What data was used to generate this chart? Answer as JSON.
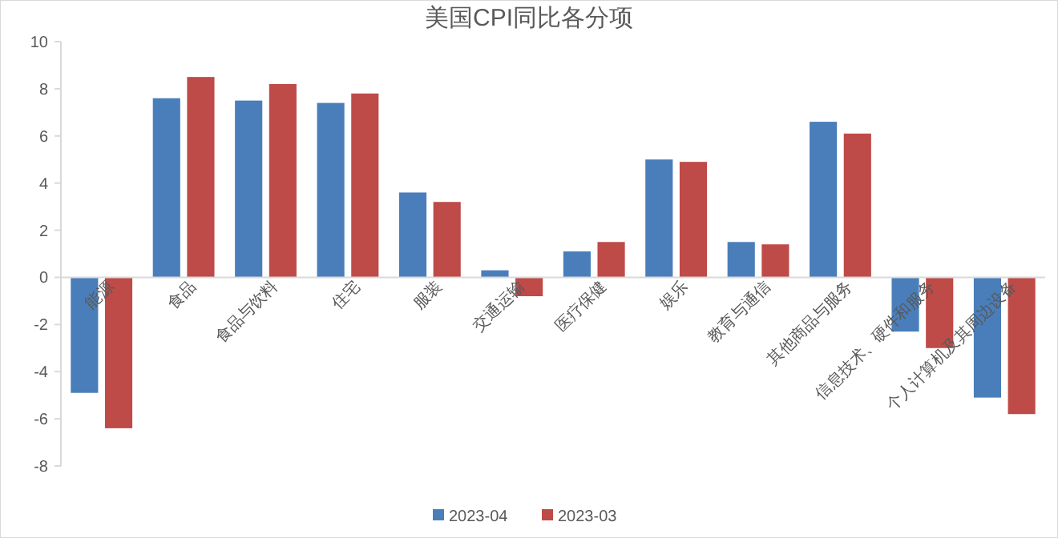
{
  "chart_data": {
    "type": "bar",
    "title": "美国CPI同比各分项",
    "categories": [
      "能源",
      "食品",
      "食品与饮料",
      "住宅",
      "服装",
      "交通运输",
      "医疗保健",
      "娱乐",
      "教育与通信",
      "其他商品与服务",
      "信息技术、硬件和服务",
      "个人计算机及其周边设备"
    ],
    "series": [
      {
        "name": "2023-04",
        "color": "#4a7ebb",
        "values": [
          -4.9,
          7.6,
          7.5,
          7.4,
          3.6,
          0.3,
          1.1,
          5.0,
          1.5,
          6.6,
          -2.3,
          -5.1
        ]
      },
      {
        "name": "2023-03",
        "color": "#be4b48",
        "values": [
          -6.4,
          8.5,
          8.2,
          7.8,
          3.2,
          -0.8,
          1.5,
          4.9,
          1.4,
          6.1,
          -3.0,
          -5.8
        ]
      }
    ],
    "ylim": [
      -8,
      10
    ],
    "yticks": [
      -8,
      -6,
      -4,
      -2,
      0,
      2,
      4,
      6,
      8,
      10
    ],
    "grid": false,
    "legend": "bottom"
  }
}
